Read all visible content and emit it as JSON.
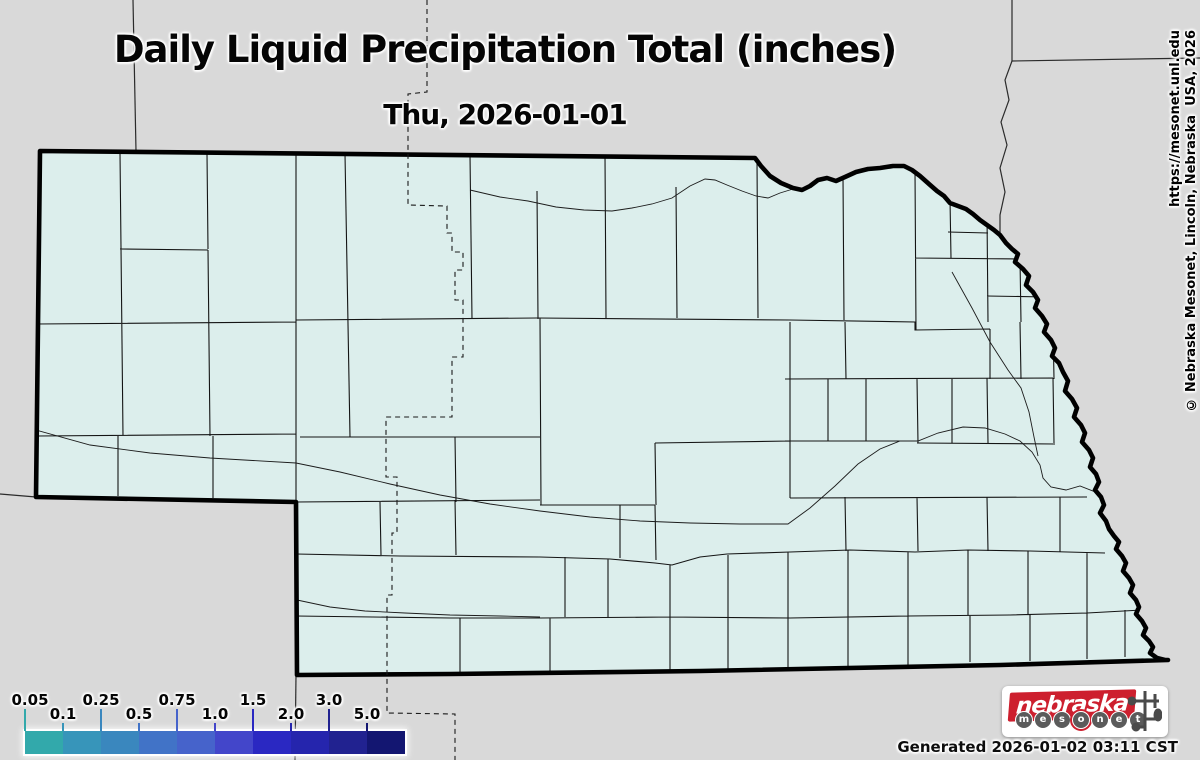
{
  "title": "Daily Liquid Precipitation Total (inches)",
  "subtitle": "Thu, 2026-01-01",
  "credits": {
    "url": "https://mesonet.unl.edu",
    "copyright": "© Nebraska Mesonet, Lincoln, Nebraska  USA, 2026"
  },
  "generated": "Generated 2026-01-02 03:11 CST",
  "legend": {
    "labels": [
      "0.05",
      "0.1",
      "0.25",
      "0.5",
      "0.75",
      "1.0",
      "1.5",
      "2.0",
      "3.0",
      "5.0"
    ],
    "colors": [
      "#32a9ab",
      "#3795ba",
      "#3a87be",
      "#4173c7",
      "#4663cb",
      "#4346ca",
      "#2a28c2",
      "#2525ad",
      "#212290",
      "#131671"
    ]
  },
  "logo": {
    "word": "nebraska",
    "letters": [
      "m",
      "e",
      "s",
      "o",
      "n",
      "e",
      "t"
    ],
    "red": "#cd1f2e",
    "circle_gray": "#5b5b5b",
    "red_circle_index": 3
  },
  "map": {
    "background": "#d9d9d9",
    "state_fill": "#dceeec",
    "state_border": "#000000",
    "county_line": "#141414"
  }
}
